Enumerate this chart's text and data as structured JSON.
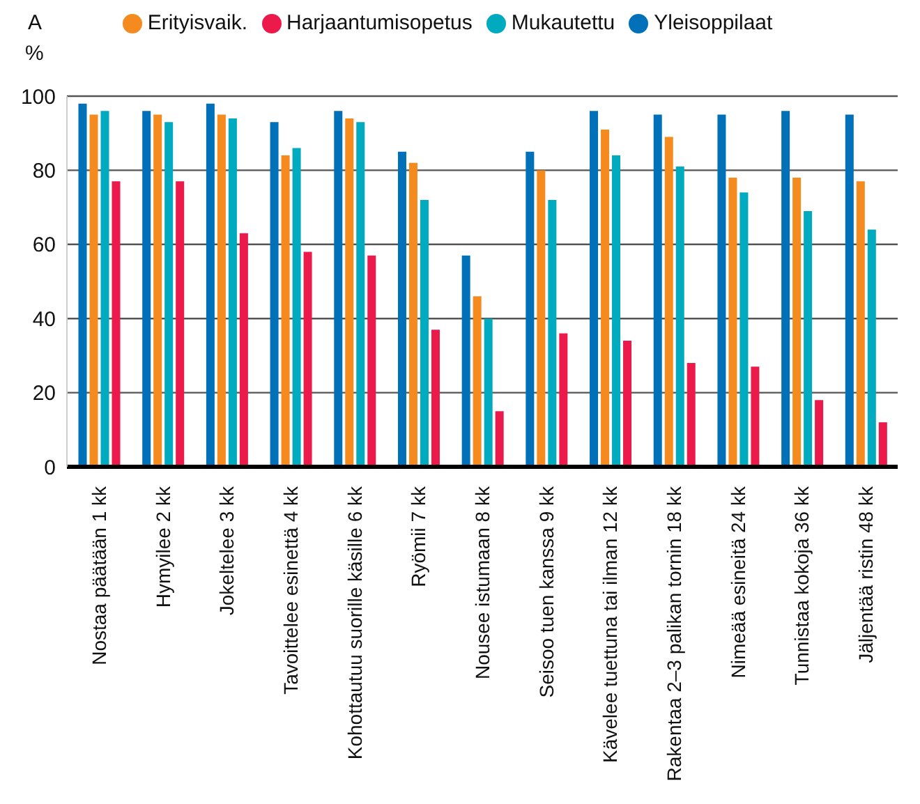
{
  "chart_data": {
    "type": "bar",
    "title": "A",
    "ylabel": "%",
    "categories": [
      "Nostaa päätään 1 kk",
      "Hymyilee 2 kk",
      "Jokeltelee 3 kk",
      "Tavoittelee esinettä 4 kk",
      "Kohottautuu suorille käsille 6 kk",
      "Ryömii 7 kk",
      "Nousee istumaan 8 kk",
      "Seisoo tuen kanssa 9 kk",
      "Kävelee tuettuna tai ilman 12 kk",
      "Rakentaa 2–3 palikan tornin 18 kk",
      "Nimeää esineitä 24 kk",
      "Tunnistaa kokoja 36 kk",
      "Jäljentää ristin 48 kk"
    ],
    "series": [
      {
        "name": "Yleisoppilaat",
        "color": "#0070b8",
        "values": [
          98,
          96,
          98,
          93,
          96,
          85,
          57,
          85,
          96,
          95,
          95,
          96,
          95
        ]
      },
      {
        "name": "Erityisvaik.",
        "color": "#f58a1f",
        "values": [
          95,
          95,
          95,
          84,
          94,
          82,
          46,
          80,
          91,
          89,
          78,
          78,
          77
        ]
      },
      {
        "name": "Mukautettu",
        "color": "#00aabf",
        "values": [
          96,
          93,
          94,
          86,
          93,
          72,
          40,
          72,
          84,
          81,
          74,
          69,
          64
        ]
      },
      {
        "name": "Harjaantumisopetus",
        "color": "#eb1a4b",
        "values": [
          77,
          77,
          63,
          58,
          57,
          37,
          15,
          36,
          34,
          28,
          27,
          18,
          12
        ]
      }
    ],
    "ylim": [
      0,
      100
    ],
    "yticks": [
      0,
      20,
      40,
      60,
      80,
      100
    ],
    "grid": "y",
    "legend": "top"
  }
}
